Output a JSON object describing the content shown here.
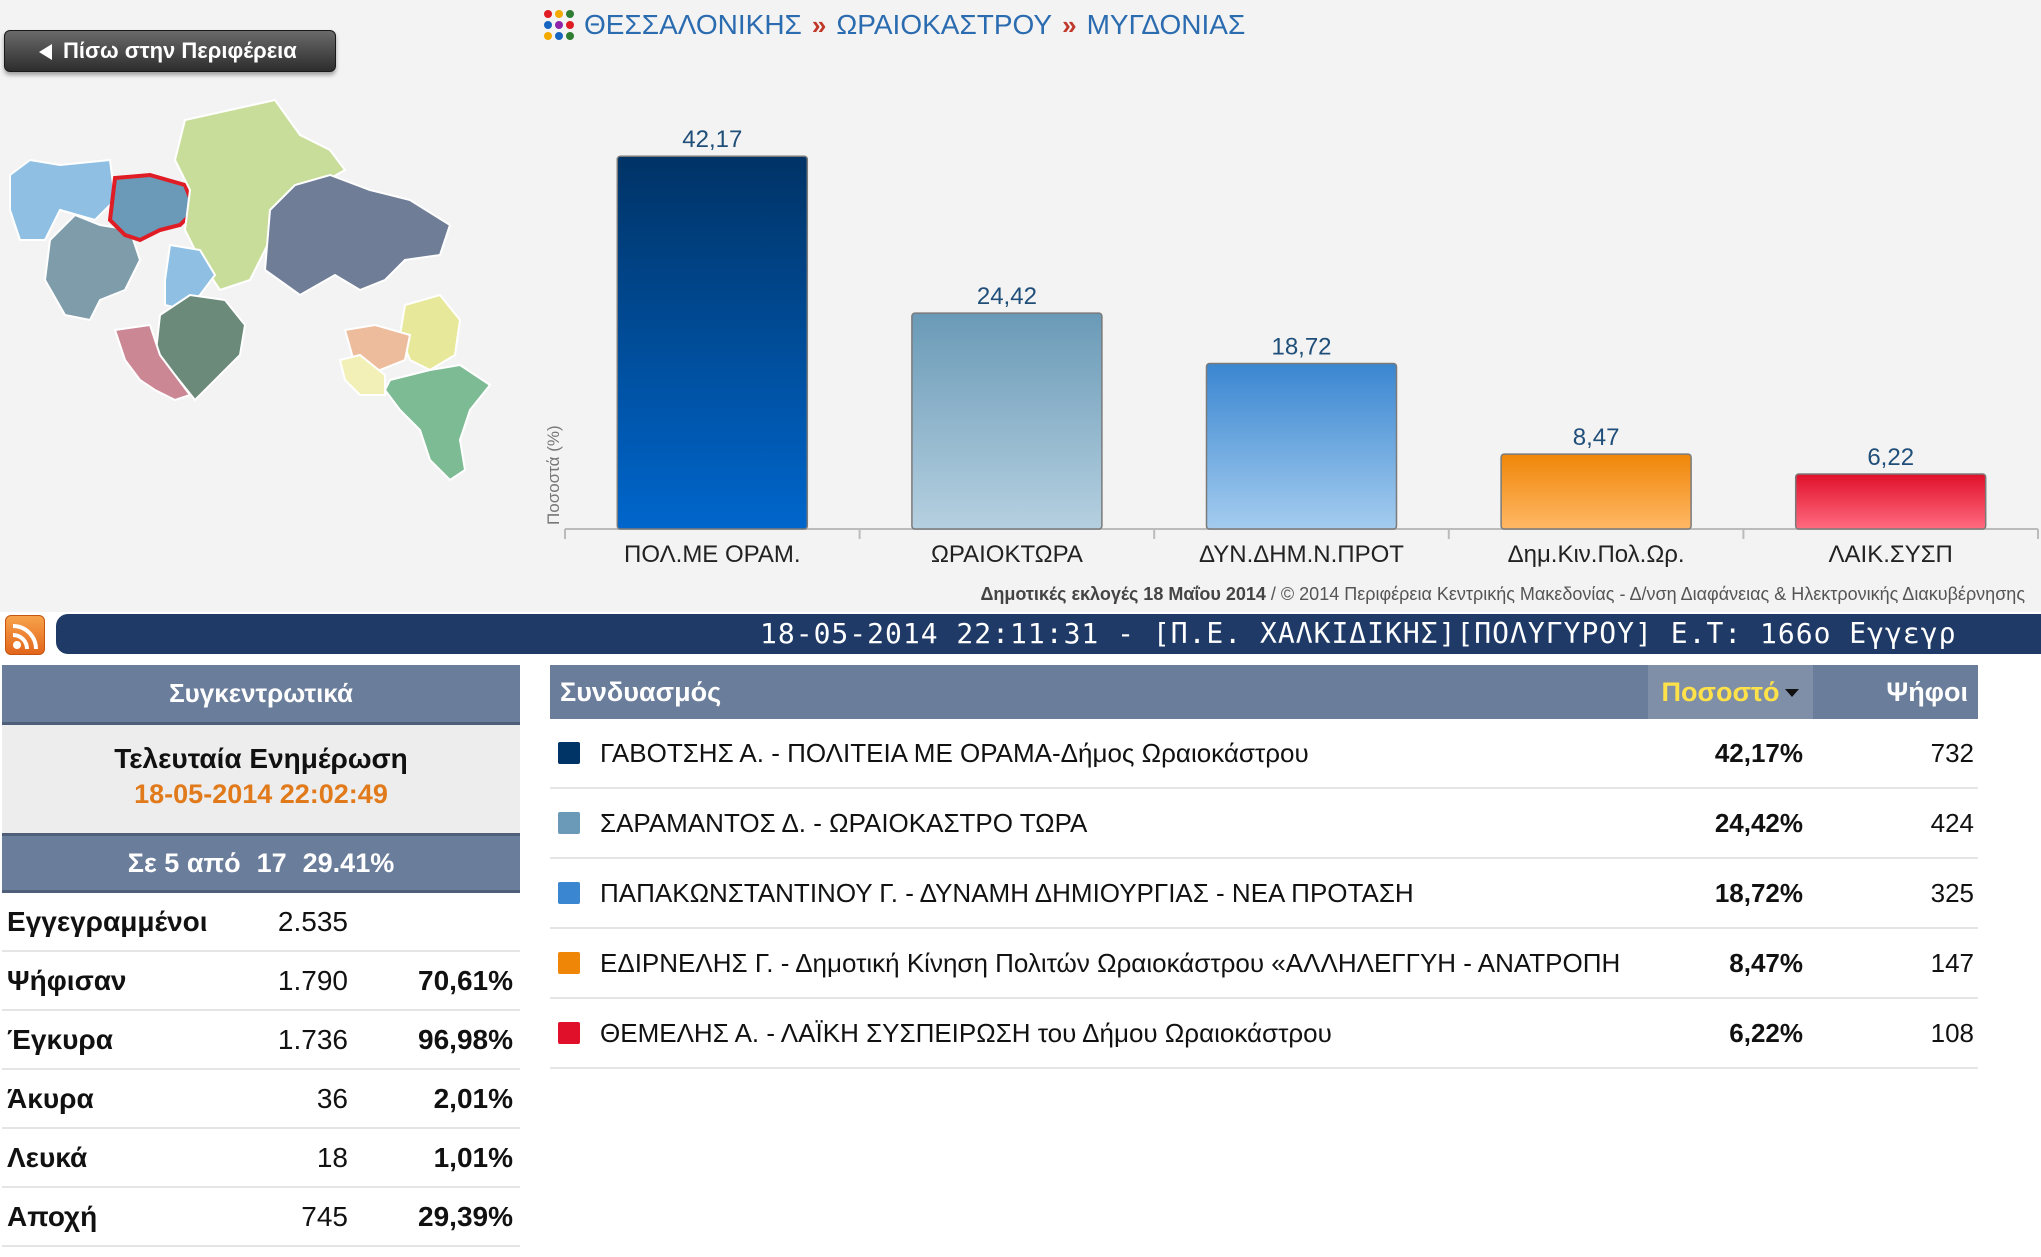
{
  "nav": {
    "back_label": "Πίσω στην Περιφέρεια",
    "breadcrumb": [
      "ΘΕΣΣΑΛΟΝΙΚΗΣ",
      "ΩΡΑΙΟΚΑΣΤΡΟΥ",
      "ΜΥΓΔΟΝΙΑΣ"
    ],
    "separator": "»"
  },
  "chart_data": {
    "type": "bar",
    "ylabel": "Ποσοστά (%)",
    "xlabel": "",
    "ylim": [
      0,
      50
    ],
    "grid": false,
    "categories": [
      "ΠΟΛ.ΜΕ ΟΡΑΜ.",
      "ΩΡΑΙΟΚΤΩΡΑ",
      "ΔΥΝ.ΔΗΜ.Ν.ΠΡΟΤ",
      "Δημ.Κιν.Πολ.Ωρ.",
      "ΛΑΙΚ.ΣΥΣΠ"
    ],
    "values": [
      42.17,
      24.42,
      18.72,
      8.47,
      6.22
    ],
    "value_labels": [
      "42,17",
      "24,42",
      "18,72",
      "8,47",
      "6,22"
    ],
    "colors": [
      [
        "#003366",
        "#0066cc"
      ],
      [
        "#6a9ab7",
        "#b5d0e0"
      ],
      [
        "#3a86d0",
        "#a4ccef"
      ],
      [
        "#ef8608",
        "#ffb866"
      ],
      [
        "#e0102a",
        "#ff6b80"
      ]
    ]
  },
  "credits": {
    "bold": "Δημοτικές εκλογές 18 Μαΐου 2014",
    "rest": " / © 2014 Περιφέρεια Κεντρικής Μακεδονίας - Δ/νση Διαφάνειας & Ηλεκτρονικής Διακυβέρνησης"
  },
  "ticker": {
    "text": "18-05-2014 22:11:31 - [Π.Ε. ΧΑΛΚΙΔΙΚΗΣ][ΠΟΛΥΓΥΡΟΥ] Ε.Τ: 166ο Εγγεγρ"
  },
  "summary": {
    "title": "Συγκεντρωτικά",
    "last_update_label": "Τελευταία Ενημέρωση",
    "last_update_time": "18-05-2014 22:02:49",
    "progress": {
      "prefix": "Σε 5 από",
      "total": "17",
      "percent": "29.41%"
    },
    "rows": [
      {
        "label": "Εγγεγραμμένοι",
        "value": "2.535",
        "percent": ""
      },
      {
        "label": "Ψήφισαν",
        "value": "1.790",
        "percent": "70,61%"
      },
      {
        "label": "Έγκυρα",
        "value": "1.736",
        "percent": "96,98%"
      },
      {
        "label": "Άκυρα",
        "value": "36",
        "percent": "2,01%"
      },
      {
        "label": "Λευκά",
        "value": "18",
        "percent": "1,01%"
      },
      {
        "label": "Αποχή",
        "value": "745",
        "percent": "29,39%"
      }
    ]
  },
  "results": {
    "headers": {
      "name": "Συνδυασμός",
      "percent": "Ποσοστό",
      "votes": "Ψήφοι"
    },
    "rows": [
      {
        "name": "ΓΑΒΟΤΣΗΣ Α. - ΠΟΛΙΤΕΙΑ ΜΕ ΟΡΑΜΑ-Δήμος Ωραιοκάστρου",
        "percent": "42,17%",
        "votes": "732",
        "color": "#003366"
      },
      {
        "name": "ΣΑΡΑΜΑΝΤΟΣ Δ. - ΩΡΑΙΟΚΑΣΤΡΟ ΤΩΡΑ",
        "percent": "24,42%",
        "votes": "424",
        "color": "#6a9ab7"
      },
      {
        "name": "ΠΑΠΑΚΩΝΣΤΑΝΤΙΝΟΥ Γ. - ΔΥΝΑΜΗ ΔΗΜΙΟΥΡΓΙΑΣ - ΝΕΑ ΠΡΟΤΑΣΗ",
        "percent": "18,72%",
        "votes": "325",
        "color": "#3a86d0"
      },
      {
        "name": "ΕΔΙΡΝΕΛΗΣ Γ. - Δημοτική Κίνηση Πολιτών Ωραιοκάστρου «ΑΛΛΗΛΕΓΓΥΗ - ΑΝΑΤΡΟΠΗ",
        "percent": "8,47%",
        "votes": "147",
        "color": "#ef8608"
      },
      {
        "name": "ΘΕΜΕΛΗΣ Α. - ΛΑΪΚΗ ΣΥΣΠΕΙΡΩΣΗ του Δήμου Ωραιοκάστρου",
        "percent": "6,22%",
        "votes": "108",
        "color": "#e0102a"
      }
    ]
  }
}
